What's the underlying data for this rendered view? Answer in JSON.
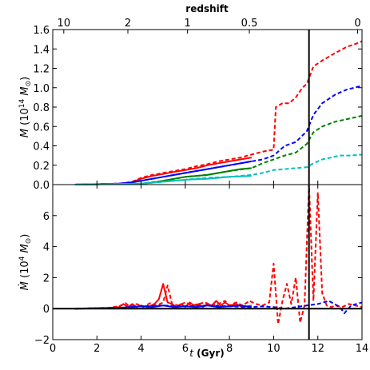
{
  "chart_data": [
    {
      "type": "line",
      "panel": "top",
      "ylabel": "M (10^14 M_sun)",
      "top_xlabel": "redshift",
      "xlim": [
        0,
        14
      ],
      "ylim": [
        0,
        1.6
      ],
      "yticks": [
        0.0,
        0.2,
        0.4,
        0.6,
        0.8,
        1.0,
        1.2,
        1.4,
        1.6
      ],
      "ytick_labels": [
        "0.0",
        "0.2",
        "0.4",
        "0.6",
        "0.8",
        "1.0",
        "1.2",
        "1.4",
        "1.6"
      ],
      "top_ticks": [
        {
          "label": "10",
          "t": 0.5
        },
        {
          "label": "2",
          "t": 3.4
        },
        {
          "label": "1",
          "t": 6.1
        },
        {
          "label": "0.5",
          "t": 8.9
        },
        {
          "label": "0",
          "t": 13.8
        }
      ],
      "vline_t": 11.6,
      "series": [
        {
          "color": "#ff0000",
          "style": "solid",
          "points": [
            [
              1.0,
              0.0
            ],
            [
              2.0,
              0.003
            ],
            [
              3.0,
              0.01
            ],
            [
              3.5,
              0.02
            ],
            [
              4.0,
              0.06
            ],
            [
              4.5,
              0.09
            ],
            [
              5.0,
              0.11
            ],
            [
              5.5,
              0.13
            ],
            [
              6.0,
              0.15
            ],
            [
              6.5,
              0.17
            ],
            [
              7.0,
              0.2
            ],
            [
              7.5,
              0.22
            ],
            [
              8.0,
              0.24
            ],
            [
              8.5,
              0.26
            ],
            [
              9.0,
              0.28
            ]
          ]
        },
        {
          "color": "#ff0000",
          "style": "dashed",
          "points": [
            [
              1.0,
              0.0
            ],
            [
              2.0,
              0.003
            ],
            [
              3.0,
              0.01
            ],
            [
              3.5,
              0.02
            ],
            [
              4.0,
              0.07
            ],
            [
              4.5,
              0.1
            ],
            [
              5.0,
              0.12
            ],
            [
              5.5,
              0.14
            ],
            [
              6.0,
              0.16
            ],
            [
              6.5,
              0.19
            ],
            [
              7.0,
              0.21
            ],
            [
              7.5,
              0.24
            ],
            [
              8.0,
              0.26
            ],
            [
              8.5,
              0.28
            ],
            [
              9.0,
              0.31
            ],
            [
              9.5,
              0.34
            ],
            [
              10.0,
              0.36
            ],
            [
              10.1,
              0.8
            ],
            [
              10.4,
              0.84
            ],
            [
              10.7,
              0.84
            ],
            [
              11.0,
              0.9
            ],
            [
              11.3,
              1.0
            ],
            [
              11.5,
              1.04
            ],
            [
              11.8,
              1.22
            ],
            [
              12.2,
              1.28
            ],
            [
              12.8,
              1.36
            ],
            [
              13.3,
              1.42
            ],
            [
              13.8,
              1.46
            ],
            [
              14.0,
              1.48
            ]
          ]
        },
        {
          "color": "#0000ff",
          "style": "solid",
          "points": [
            [
              1.0,
              0.0
            ],
            [
              3.0,
              0.01
            ],
            [
              3.5,
              0.02
            ],
            [
              4.0,
              0.04
            ],
            [
              4.5,
              0.06
            ],
            [
              5.0,
              0.08
            ],
            [
              5.5,
              0.1
            ],
            [
              6.0,
              0.12
            ],
            [
              6.5,
              0.14
            ],
            [
              7.0,
              0.16
            ],
            [
              7.5,
              0.18
            ],
            [
              8.0,
              0.2
            ],
            [
              8.5,
              0.22
            ],
            [
              9.0,
              0.24
            ]
          ]
        },
        {
          "color": "#0000ff",
          "style": "dashed",
          "points": [
            [
              1.0,
              0.0
            ],
            [
              3.0,
              0.01
            ],
            [
              4.0,
              0.04
            ],
            [
              5.0,
              0.08
            ],
            [
              6.0,
              0.12
            ],
            [
              7.0,
              0.16
            ],
            [
              8.0,
              0.2
            ],
            [
              9.0,
              0.24
            ],
            [
              9.5,
              0.26
            ],
            [
              10.0,
              0.3
            ],
            [
              10.5,
              0.4
            ],
            [
              11.0,
              0.44
            ],
            [
              11.5,
              0.55
            ],
            [
              11.8,
              0.72
            ],
            [
              12.2,
              0.84
            ],
            [
              12.8,
              0.93
            ],
            [
              13.3,
              0.98
            ],
            [
              14.0,
              1.02
            ]
          ]
        },
        {
          "color": "#008000",
          "style": "solid",
          "points": [
            [
              1.0,
              0.0
            ],
            [
              4.0,
              0.01
            ],
            [
              4.5,
              0.02
            ],
            [
              5.0,
              0.04
            ],
            [
              5.5,
              0.06
            ],
            [
              6.0,
              0.08
            ],
            [
              6.5,
              0.09
            ],
            [
              7.0,
              0.1
            ],
            [
              7.5,
              0.12
            ],
            [
              8.0,
              0.14
            ],
            [
              8.5,
              0.16
            ],
            [
              9.0,
              0.17
            ]
          ]
        },
        {
          "color": "#008000",
          "style": "dashed",
          "points": [
            [
              1.0,
              0.0
            ],
            [
              4.0,
              0.01
            ],
            [
              5.0,
              0.04
            ],
            [
              6.0,
              0.08
            ],
            [
              7.0,
              0.1
            ],
            [
              8.0,
              0.14
            ],
            [
              9.0,
              0.17
            ],
            [
              9.5,
              0.22
            ],
            [
              10.0,
              0.26
            ],
            [
              10.5,
              0.3
            ],
            [
              11.0,
              0.33
            ],
            [
              11.5,
              0.42
            ],
            [
              11.8,
              0.54
            ],
            [
              12.2,
              0.6
            ],
            [
              12.8,
              0.65
            ],
            [
              13.4,
              0.68
            ],
            [
              14.0,
              0.71
            ]
          ]
        },
        {
          "color": "#00bfbf",
          "style": "solid",
          "points": [
            [
              1.0,
              0.0
            ],
            [
              4.0,
              0.01
            ],
            [
              5.0,
              0.03
            ],
            [
              6.0,
              0.05
            ],
            [
              7.0,
              0.06
            ],
            [
              8.0,
              0.08
            ],
            [
              9.0,
              0.09
            ]
          ]
        },
        {
          "color": "#00bfbf",
          "style": "dashed",
          "points": [
            [
              1.0,
              0.0
            ],
            [
              4.0,
              0.01
            ],
            [
              5.0,
              0.03
            ],
            [
              6.0,
              0.05
            ],
            [
              7.0,
              0.07
            ],
            [
              8.0,
              0.08
            ],
            [
              9.0,
              0.1
            ],
            [
              9.5,
              0.12
            ],
            [
              10.0,
              0.15
            ],
            [
              10.5,
              0.16
            ],
            [
              11.0,
              0.17
            ],
            [
              11.5,
              0.18
            ],
            [
              11.8,
              0.22
            ],
            [
              12.2,
              0.26
            ],
            [
              12.6,
              0.28
            ],
            [
              13.0,
              0.3
            ],
            [
              13.5,
              0.3
            ],
            [
              14.0,
              0.31
            ]
          ]
        }
      ]
    },
    {
      "type": "line",
      "panel": "bottom",
      "ylabel": "dM/dt (10^4 M_sun)",
      "xlabel": "t (Gyr)",
      "xlim": [
        0,
        14
      ],
      "ylim": [
        -2,
        8
      ],
      "xticks": [
        0,
        2,
        4,
        6,
        8,
        10,
        12,
        14
      ],
      "xtick_labels": [
        "0",
        "2",
        "4",
        "6",
        "8",
        "10",
        "12",
        "14"
      ],
      "yticks": [
        -2,
        0,
        2,
        4,
        6
      ],
      "ytick_labels": [
        "−2",
        "0",
        "2",
        "4",
        "6"
      ],
      "hline_y": 0,
      "vline_t": 11.6,
      "series": [
        {
          "color": "#ff0000",
          "style": "solid",
          "points": [
            [
              1.0,
              0.0
            ],
            [
              2.5,
              0.05
            ],
            [
              3.0,
              0.1
            ],
            [
              3.2,
              0.3
            ],
            [
              3.4,
              0.1
            ],
            [
              3.6,
              0.3
            ],
            [
              3.8,
              0.1
            ],
            [
              4.0,
              0.2
            ],
            [
              4.3,
              0.1
            ],
            [
              4.6,
              0.3
            ],
            [
              4.8,
              0.6
            ],
            [
              5.0,
              1.6
            ],
            [
              5.2,
              0.4
            ],
            [
              5.4,
              0.3
            ],
            [
              5.6,
              0.1
            ],
            [
              5.8,
              0.3
            ],
            [
              6.0,
              0.1
            ],
            [
              6.2,
              0.4
            ],
            [
              6.4,
              0.2
            ],
            [
              6.6,
              0.3
            ],
            [
              6.8,
              0.1
            ],
            [
              7.0,
              0.3
            ],
            [
              7.2,
              0.2
            ],
            [
              7.4,
              0.5
            ],
            [
              7.6,
              0.2
            ],
            [
              7.8,
              0.4
            ],
            [
              8.0,
              0.2
            ],
            [
              8.3,
              0.3
            ],
            [
              8.6,
              0.1
            ],
            [
              9.0,
              0.2
            ]
          ]
        },
        {
          "color": "#ff0000",
          "style": "dashed",
          "points": [
            [
              1.0,
              0.0
            ],
            [
              2.5,
              0.05
            ],
            [
              3.0,
              0.15
            ],
            [
              3.3,
              0.35
            ],
            [
              3.5,
              0.1
            ],
            [
              3.8,
              0.3
            ],
            [
              4.1,
              0.1
            ],
            [
              4.4,
              0.35
            ],
            [
              4.7,
              0.2
            ],
            [
              5.0,
              0.4
            ],
            [
              5.2,
              1.5
            ],
            [
              5.4,
              0.3
            ],
            [
              5.7,
              0.2
            ],
            [
              6.0,
              0.4
            ],
            [
              6.3,
              0.2
            ],
            [
              6.6,
              0.3
            ],
            [
              6.9,
              0.4
            ],
            [
              7.2,
              0.2
            ],
            [
              7.5,
              0.3
            ],
            [
              7.8,
              0.5
            ],
            [
              8.0,
              0.2
            ],
            [
              8.3,
              0.4
            ],
            [
              8.6,
              0.2
            ],
            [
              8.9,
              0.5
            ],
            [
              9.2,
              0.3
            ],
            [
              9.5,
              0.2
            ],
            [
              9.8,
              0.4
            ],
            [
              10.0,
              2.9
            ],
            [
              10.2,
              -1.0
            ],
            [
              10.4,
              0.5
            ],
            [
              10.6,
              1.6
            ],
            [
              10.8,
              0.3
            ],
            [
              11.0,
              2.0
            ],
            [
              11.2,
              -0.9
            ],
            [
              11.4,
              0.2
            ],
            [
              11.6,
              8.0
            ],
            [
              11.8,
              0.5
            ],
            [
              12.0,
              7.5
            ],
            [
              12.2,
              1.0
            ],
            [
              12.4,
              0.2
            ],
            [
              12.6,
              0.1
            ],
            [
              12.8,
              0.2
            ],
            [
              13.1,
              0.1
            ],
            [
              13.4,
              0.3
            ],
            [
              13.7,
              0.2
            ],
            [
              14.0,
              0.1
            ]
          ]
        },
        {
          "color": "#0000ff",
          "style": "solid",
          "points": [
            [
              1.0,
              0.0
            ],
            [
              3.0,
              0.05
            ],
            [
              3.5,
              0.1
            ],
            [
              4.0,
              0.15
            ],
            [
              4.5,
              0.1
            ],
            [
              5.0,
              0.2
            ],
            [
              5.5,
              0.1
            ],
            [
              6.0,
              0.15
            ],
            [
              6.5,
              0.1
            ],
            [
              7.0,
              0.2
            ],
            [
              7.5,
              0.1
            ],
            [
              8.0,
              0.15
            ],
            [
              8.5,
              0.2
            ],
            [
              9.0,
              0.1
            ]
          ]
        },
        {
          "color": "#0000ff",
          "style": "dashed",
          "points": [
            [
              1.0,
              0.0
            ],
            [
              3.0,
              0.05
            ],
            [
              4.0,
              0.15
            ],
            [
              5.0,
              0.2
            ],
            [
              6.0,
              0.15
            ],
            [
              7.0,
              0.2
            ],
            [
              8.0,
              0.15
            ],
            [
              9.0,
              0.1
            ],
            [
              9.5,
              0.15
            ],
            [
              10.0,
              0.1
            ],
            [
              10.5,
              0.0
            ],
            [
              11.0,
              0.1
            ],
            [
              11.5,
              0.2
            ],
            [
              12.0,
              0.3
            ],
            [
              12.5,
              0.5
            ],
            [
              13.0,
              0.1
            ],
            [
              13.2,
              -0.3
            ],
            [
              13.5,
              0.2
            ],
            [
              14.0,
              0.4
            ]
          ]
        }
      ]
    }
  ]
}
